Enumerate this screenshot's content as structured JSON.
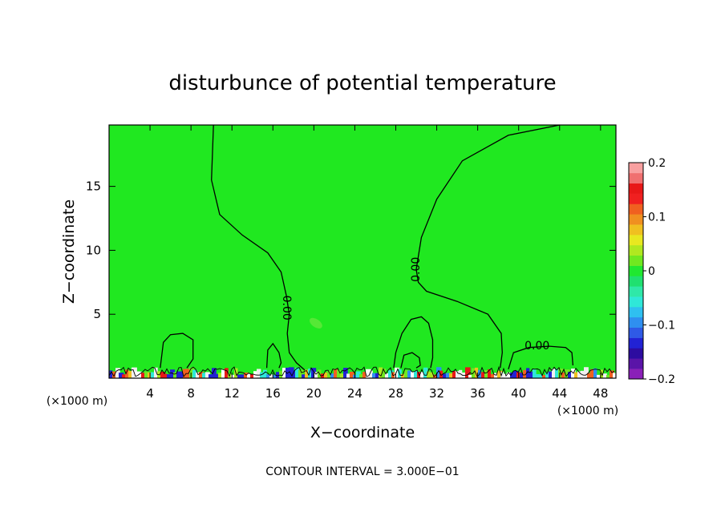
{
  "chart_data": {
    "type": "heatmap",
    "title": "disturbunce of potential temperature",
    "xlabel": "X−coordinate",
    "ylabel": "Z−coordinate",
    "x_unit_left": "(×1000 m)",
    "x_unit_right": "(×1000 m)",
    "x_ticks": [
      4,
      8,
      12,
      16,
      20,
      24,
      28,
      32,
      36,
      40,
      44,
      48
    ],
    "y_ticks": [
      5,
      10,
      15
    ],
    "xlim": [
      0,
      49.5
    ],
    "ylim": [
      0,
      19.8
    ],
    "background_value": 0.0,
    "colorbar": {
      "ticks": [
        "0.2",
        "0.1",
        "0",
        "−0.1",
        "−0.2"
      ],
      "tick_values": [
        0.2,
        0.1,
        0,
        -0.1,
        -0.2
      ],
      "range": [
        -0.2,
        0.2
      ],
      "colors": [
        "#8a1fb8",
        "#5a14a8",
        "#2d0ca0",
        "#2222d4",
        "#2f5ae6",
        "#2f8ff0",
        "#2fc0f0",
        "#2fe8d8",
        "#2fe8a8",
        "#20e070",
        "#20e830",
        "#70e820",
        "#b0e820",
        "#e8e820",
        "#f0c020",
        "#f09020",
        "#f06020",
        "#f02020",
        "#e81818",
        "#f07070",
        "#f8a0a0"
      ]
    },
    "contours": [
      {
        "label": "0.00",
        "level": 0.0,
        "x": [
          10.2,
          10.0,
          10.8,
          13.0,
          15.5,
          16.8,
          17.3,
          17.6,
          17.4,
          17.6,
          18.3,
          19.3
        ],
        "y": [
          19.8,
          15.5,
          12.8,
          11.2,
          9.8,
          8.3,
          6.5,
          5.0,
          3.5,
          2.0,
          1.2,
          0.5
        ]
      },
      {
        "label": "0.00",
        "level": 0.0,
        "x": [
          44.0,
          39.0,
          34.5,
          32.0,
          30.5,
          30.0,
          30.2,
          31.0,
          34.0,
          37.0,
          38.3,
          38.4,
          38.2
        ],
        "y": [
          19.8,
          19.0,
          17.0,
          14.0,
          11.0,
          8.5,
          7.5,
          6.8,
          6.0,
          5.0,
          3.5,
          2.0,
          0.8
        ]
      },
      {
        "label": "0.00",
        "level": 0.0,
        "x": [
          39.0,
          39.5,
          41.0,
          43.0,
          44.6,
          45.2,
          45.3
        ],
        "y": [
          0.7,
          2.0,
          2.4,
          2.5,
          2.4,
          2.0,
          1.0
        ]
      },
      {
        "label": "",
        "level": 0.0,
        "x": [
          5.0,
          5.3,
          6.0,
          7.2,
          8.2,
          8.2,
          7.6
        ],
        "y": [
          0.8,
          2.8,
          3.4,
          3.5,
          3.0,
          1.5,
          0.8
        ]
      },
      {
        "label": "",
        "level": 0.0,
        "x": [
          27.8,
          28.0,
          28.6,
          29.5,
          30.5,
          31.2,
          31.6,
          31.6,
          31.4
        ],
        "y": [
          0.8,
          2.0,
          3.5,
          4.6,
          4.8,
          4.3,
          3.0,
          1.6,
          0.8
        ]
      },
      {
        "label": "",
        "level": 0.0,
        "x": [
          15.4,
          15.5,
          16.0,
          16.6,
          16.8,
          16.6
        ],
        "y": [
          0.8,
          2.2,
          2.7,
          2.0,
          1.2,
          0.8
        ]
      },
      {
        "label": "",
        "level": 0.0,
        "x": [
          28.5,
          28.8,
          29.6,
          30.3,
          30.4,
          30.0
        ],
        "y": [
          0.8,
          1.8,
          2.0,
          1.6,
          1.0,
          0.8
        ]
      }
    ],
    "contour_interval_text": "CONTOUR INTERVAL = 3.000E−01"
  }
}
